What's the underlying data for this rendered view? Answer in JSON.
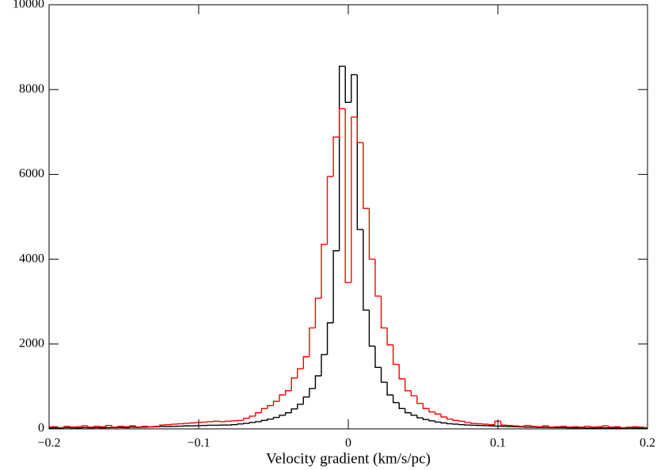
{
  "chart_data": {
    "type": "histogram",
    "xlabel": "Velocity gradient (km/s/pc)",
    "bins": [
      -0.202,
      -0.198,
      -0.194,
      -0.19,
      -0.186,
      -0.182,
      -0.178,
      -0.174,
      -0.17,
      -0.166,
      -0.162,
      -0.158,
      -0.154,
      -0.15,
      -0.146,
      -0.142,
      -0.138,
      -0.134,
      -0.13,
      -0.126,
      -0.122,
      -0.118,
      -0.114,
      -0.11,
      -0.106,
      -0.102,
      -0.098,
      -0.094,
      -0.09,
      -0.086,
      -0.082,
      -0.078,
      -0.074,
      -0.07,
      -0.066,
      -0.062,
      -0.058,
      -0.054,
      -0.05,
      -0.046,
      -0.042,
      -0.038,
      -0.034,
      -0.03,
      -0.026,
      -0.022,
      -0.018,
      -0.014,
      -0.01,
      -0.006,
      -0.002,
      0.002,
      0.006,
      0.01,
      0.014,
      0.018,
      0.022,
      0.026,
      0.03,
      0.034,
      0.038,
      0.042,
      0.046,
      0.05,
      0.054,
      0.058,
      0.062,
      0.066,
      0.07,
      0.074,
      0.078,
      0.082,
      0.086,
      0.09,
      0.094,
      0.098,
      0.102,
      0.106,
      0.11,
      0.114,
      0.118,
      0.122,
      0.126,
      0.13,
      0.134,
      0.138,
      0.142,
      0.146,
      0.15,
      0.154,
      0.158,
      0.162,
      0.166,
      0.17,
      0.174,
      0.178,
      0.182,
      0.186,
      0.19,
      0.194,
      0.198,
      0.202
    ],
    "series": [
      {
        "color": "#000000",
        "values": [
          20,
          25,
          20,
          30,
          25,
          20,
          30,
          25,
          30,
          25,
          30,
          30,
          35,
          30,
          40,
          35,
          40,
          45,
          50,
          55,
          55,
          60,
          65,
          70,
          70,
          75,
          80,
          85,
          85,
          90,
          90,
          100,
          115,
          130,
          150,
          170,
          200,
          230,
          270,
          320,
          380,
          470,
          580,
          750,
          950,
          1250,
          1750,
          2500,
          4200,
          8550,
          7700,
          8350,
          4700,
          2800,
          1950,
          1450,
          1100,
          800,
          620,
          480,
          380,
          320,
          260,
          220,
          190,
          160,
          140,
          120,
          110,
          100,
          90,
          85,
          80,
          75,
          70,
          65,
          60,
          55,
          50,
          45,
          40,
          40,
          35,
          35,
          30,
          30,
          30,
          25,
          25,
          25,
          20,
          20,
          20,
          25,
          20,
          20,
          20,
          25,
          20,
          20,
          20
        ]
      },
      {
        "color": "#ff0000",
        "values": [
          40,
          50,
          30,
          60,
          40,
          50,
          70,
          40,
          60,
          50,
          80,
          40,
          60,
          50,
          70,
          40,
          60,
          50,
          60,
          90,
          100,
          110,
          120,
          130,
          140,
          150,
          160,
          170,
          180,
          170,
          180,
          190,
          200,
          250,
          300,
          380,
          480,
          550,
          650,
          800,
          900,
          1200,
          1420,
          1700,
          2380,
          3080,
          4350,
          5950,
          6880,
          7550,
          3450,
          7350,
          6750,
          5200,
          4000,
          3130,
          2380,
          1980,
          1520,
          1180,
          900,
          780,
          600,
          480,
          400,
          350,
          280,
          230,
          200,
          180,
          150,
          130,
          120,
          110,
          100,
          180,
          90,
          80,
          70,
          60,
          80,
          60,
          50,
          70,
          40,
          50,
          60,
          40,
          50,
          40,
          60,
          40,
          50,
          70,
          40,
          50,
          30,
          40,
          50,
          40,
          30
        ]
      }
    ],
    "xlim": [
      -0.2,
      0.2
    ],
    "xticks": [
      {
        "value": -0.2,
        "label": "−0.2"
      },
      {
        "value": -0.1,
        "label": "−0.1"
      },
      0,
      0.1,
      0.2
    ],
    "ylim": [
      0,
      10000
    ],
    "yticks": [
      0,
      2000,
      4000,
      6000,
      8000,
      10000
    ]
  }
}
